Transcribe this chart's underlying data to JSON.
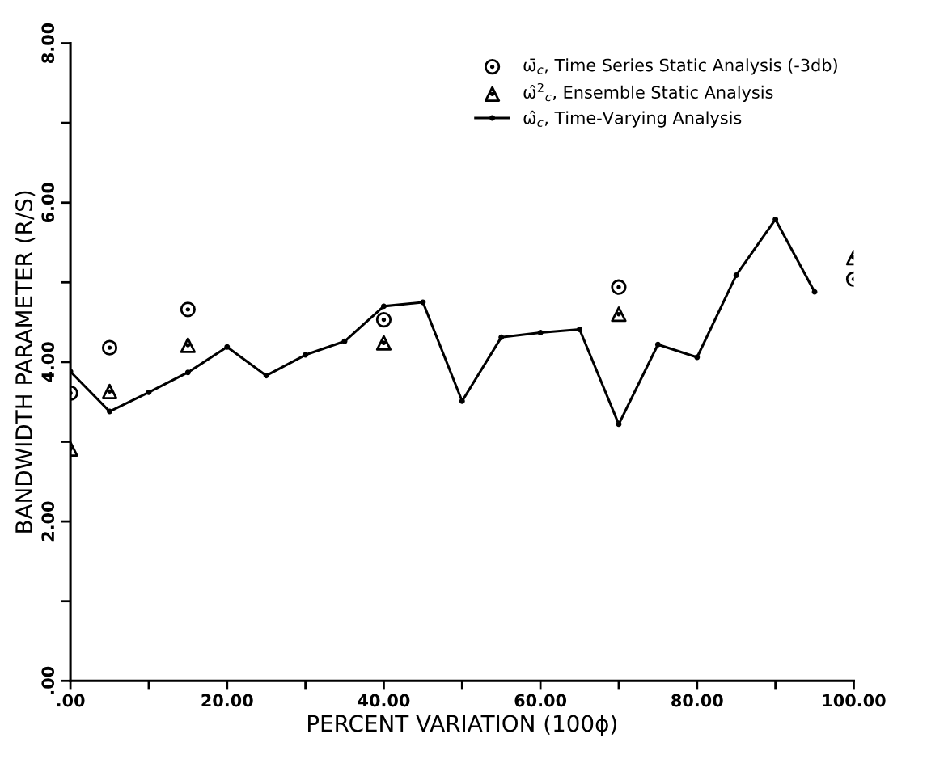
{
  "chart_data": {
    "type": "line",
    "xlabel": "PERCENT VARIATION (100ϕ)",
    "ylabel": "BANDWIDTH PARAMETER (R/S)",
    "xlim": [
      0,
      100
    ],
    "ylim": [
      0,
      8
    ],
    "xticks": [
      {
        "value": 0,
        "label": ".00"
      },
      {
        "value": 10,
        "label": null
      },
      {
        "value": 20,
        "label": "20.00"
      },
      {
        "value": 30,
        "label": null
      },
      {
        "value": 40,
        "label": "40.00"
      },
      {
        "value": 50,
        "label": null
      },
      {
        "value": 60,
        "label": "60.00"
      },
      {
        "value": 70,
        "label": null
      },
      {
        "value": 80,
        "label": "80.00"
      },
      {
        "value": 90,
        "label": null
      },
      {
        "value": 100,
        "label": "100.00"
      }
    ],
    "yticks": [
      {
        "value": 0,
        "label": ".00"
      },
      {
        "value": 1,
        "label": null
      },
      {
        "value": 2,
        "label": "2.00"
      },
      {
        "value": 3,
        "label": null
      },
      {
        "value": 4,
        "label": "4.00"
      },
      {
        "value": 5,
        "label": null
      },
      {
        "value": 6,
        "label": "6.00"
      },
      {
        "value": 7,
        "label": null
      },
      {
        "value": 8,
        "label": "8.00"
      }
    ],
    "grid": false,
    "legend": "top right",
    "series": [
      {
        "name": "ω̄$_{c}$, Time Series Static Analysis (-3db)",
        "type": "scatter",
        "marker": "circle",
        "color": "#000000",
        "x": [
          0,
          5,
          15,
          40,
          70,
          100
        ],
        "values": [
          3.61,
          4.18,
          4.66,
          4.53,
          4.94,
          5.04
        ]
      },
      {
        "name": "ω̂$^{2}$$_{c}$, Ensemble Static Analysis",
        "type": "scatter",
        "marker": "triangle",
        "color": "#000000",
        "x": [
          0,
          5,
          15,
          40,
          70,
          100
        ],
        "values": [
          2.91,
          3.63,
          4.21,
          4.24,
          4.6,
          5.31
        ]
      },
      {
        "name": "ω̂$_{c}$, Time-Varying Analysis",
        "marker": "circle",
        "line_style": "solid",
        "color": "#000000",
        "x": [
          0,
          5,
          10,
          15,
          20,
          25,
          30,
          35,
          40,
          45,
          50,
          55,
          60,
          65,
          70,
          75,
          80,
          85,
          90,
          95
        ],
        "values": [
          3.88,
          3.38,
          3.62,
          3.87,
          4.19,
          3.83,
          4.09,
          4.26,
          4.7,
          4.75,
          3.51,
          4.31,
          4.37,
          4.41,
          3.22,
          4.22,
          4.06,
          5.09,
          5.79,
          4.88
        ]
      }
    ]
  }
}
